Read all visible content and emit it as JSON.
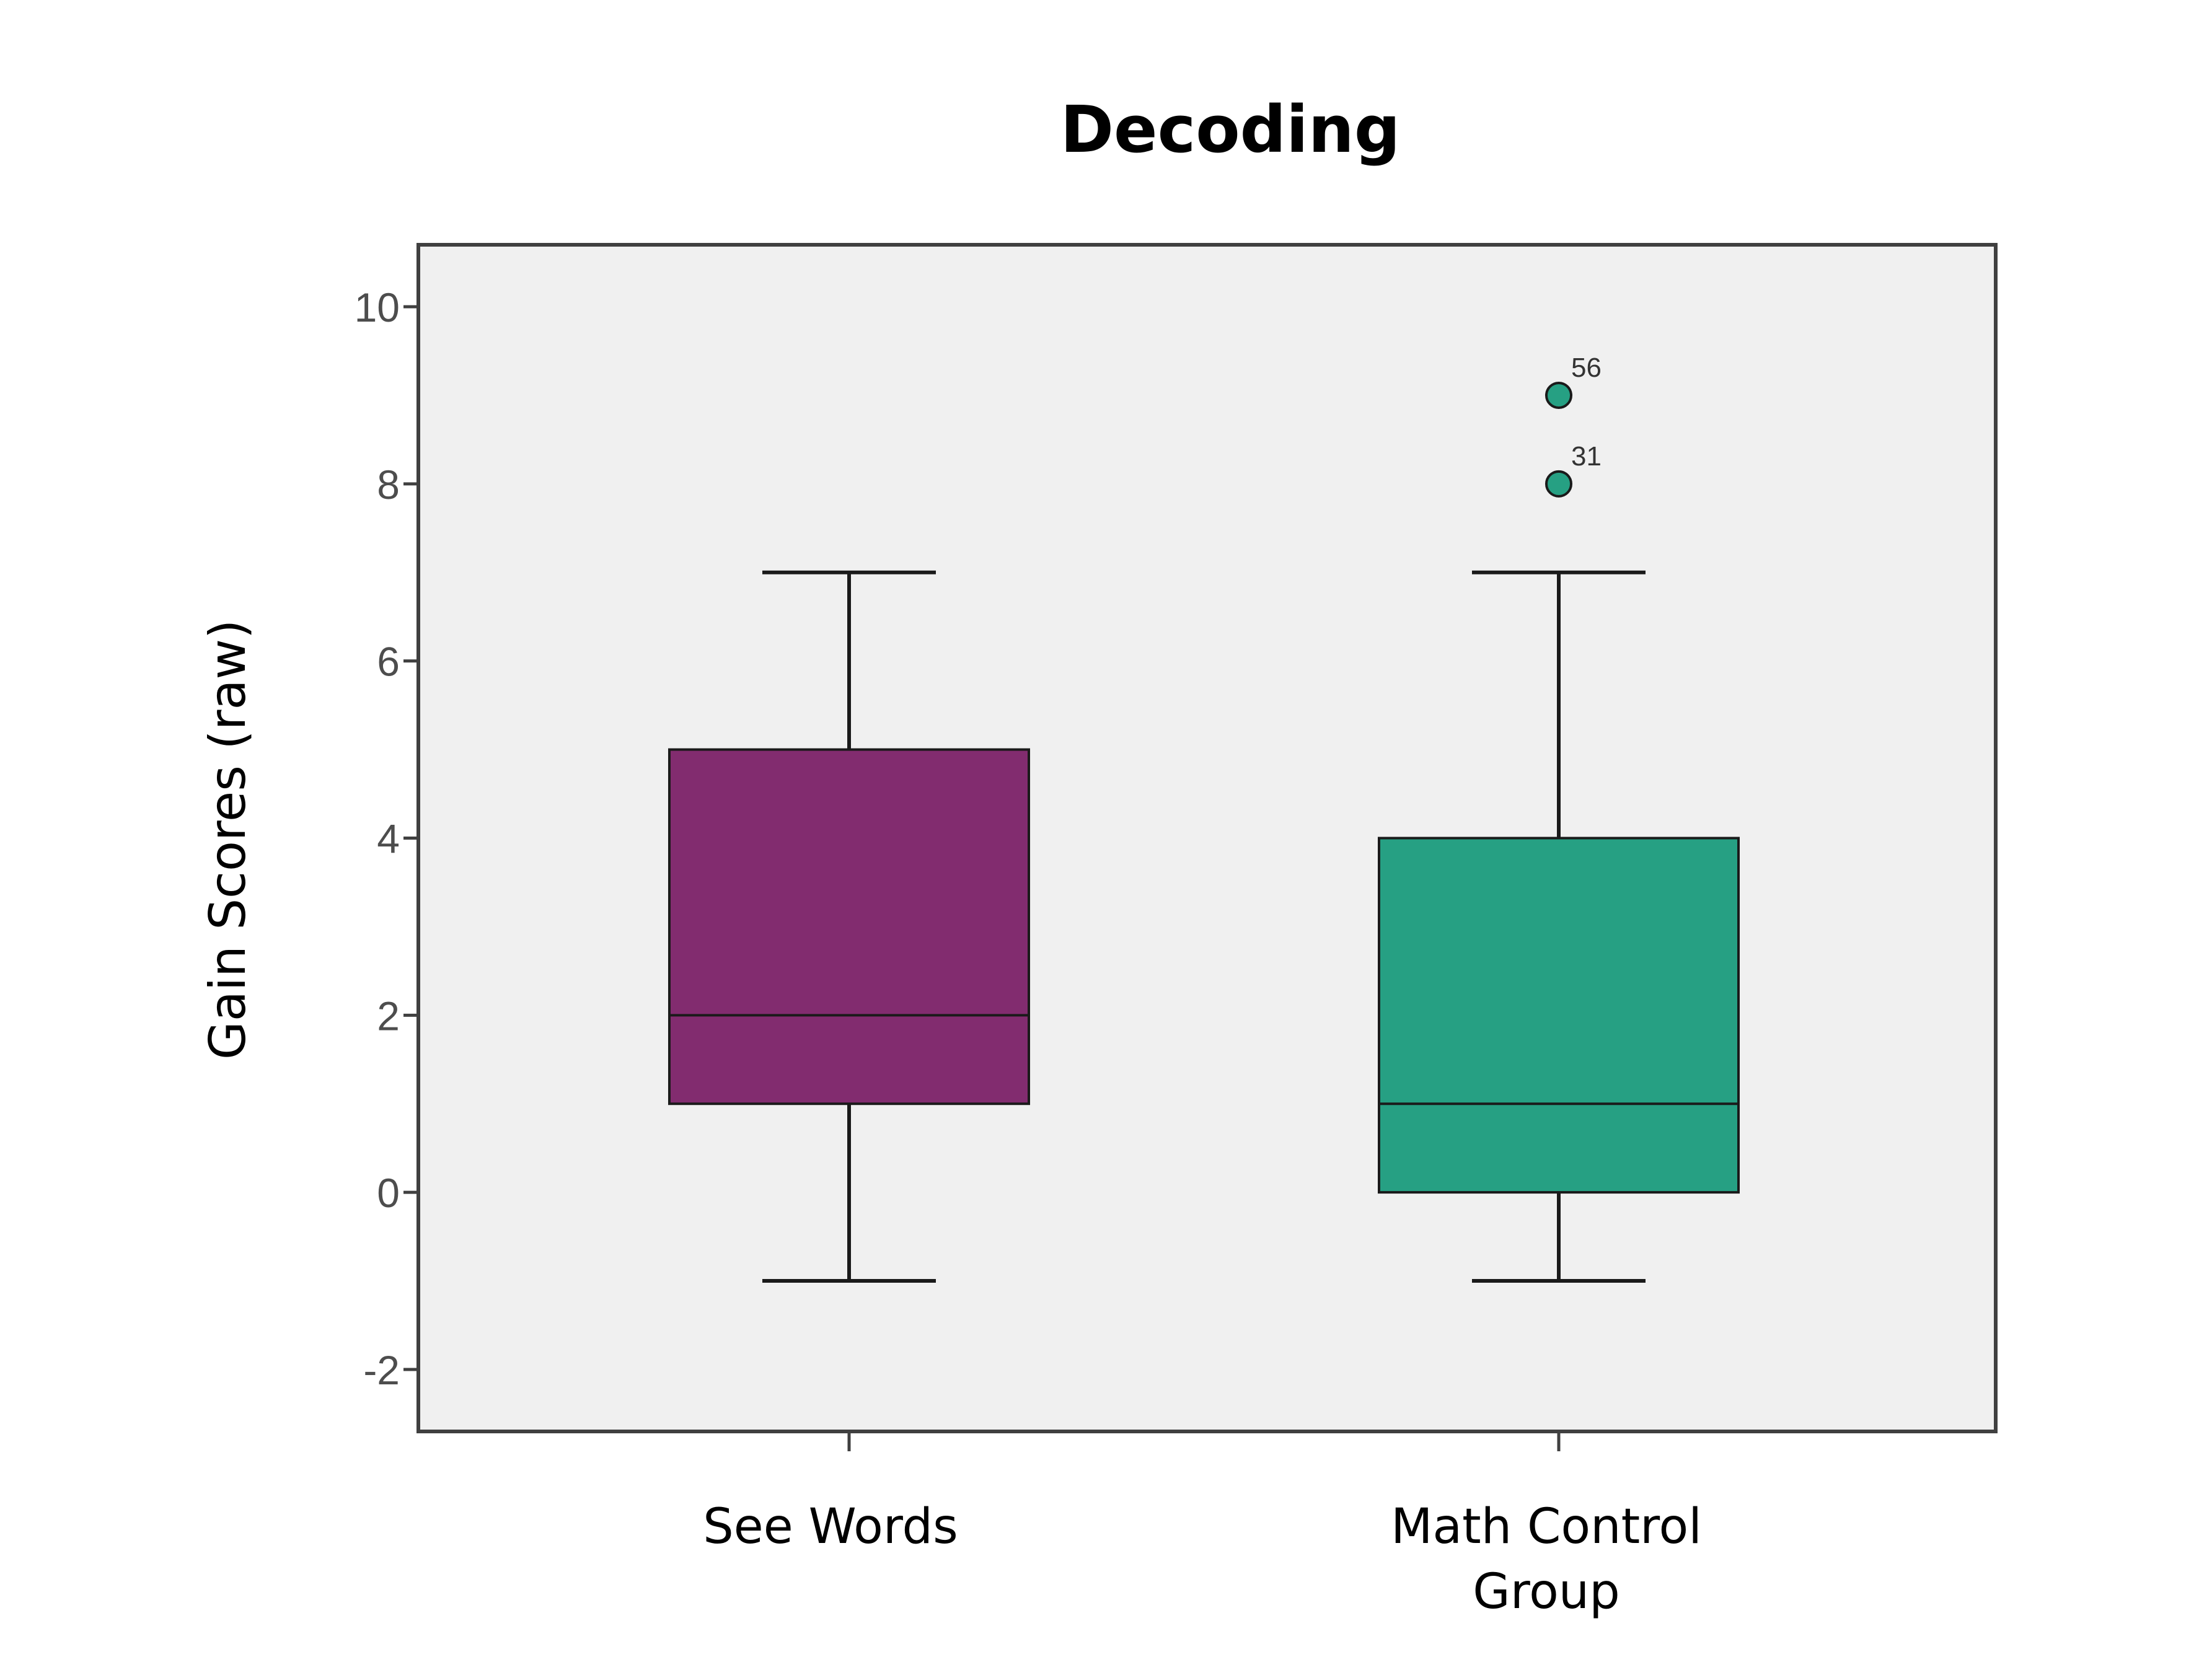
{
  "chart_data": {
    "type": "box",
    "title": "Decoding",
    "ylabel": "Gain Scores (raw)",
    "xlabel": "",
    "ylim": [
      -2.7,
      10.7
    ],
    "yticks": [
      -2,
      0,
      2,
      4,
      6,
      8,
      10
    ],
    "grid": false,
    "categories": [
      {
        "lines": [
          "See Words"
        ],
        "color": "#822c6f",
        "whisker_low": -1,
        "q1": 1,
        "median": 2,
        "q3": 5,
        "whisker_high": 7,
        "outliers": []
      },
      {
        "lines": [
          "Math Control",
          "Group"
        ],
        "color": "#26a083",
        "whisker_low": -1,
        "q1": 0,
        "median": 1,
        "q3": 4,
        "whisker_high": 7,
        "outliers": [
          {
            "value": 8,
            "label": "31"
          },
          {
            "value": 9,
            "label": "56"
          }
        ]
      }
    ],
    "plot_background": "#f0f0f0"
  }
}
